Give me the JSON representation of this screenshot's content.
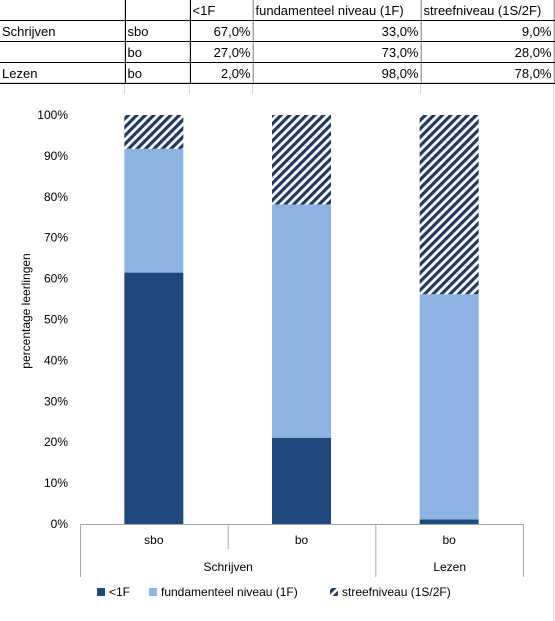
{
  "table": {
    "header": [
      "",
      "",
      "<1F",
      "fundamenteel niveau (1F)",
      "streefniveau (1S/2F)"
    ],
    "rows": [
      [
        "Schrijven",
        "sbo",
        "67,0%",
        "33,0%",
        "9,0%"
      ],
      [
        "",
        "bo",
        "27,0%",
        "73,0%",
        "28,0%"
      ],
      [
        "Lezen",
        "bo",
        "2,0%",
        "98,0%",
        "78,0%"
      ]
    ]
  },
  "chart_data": {
    "type": "bar",
    "stacked": "percent",
    "categories": [
      {
        "label": "sbo",
        "group": "Schrijven"
      },
      {
        "label": "bo",
        "group": "Schrijven"
      },
      {
        "label": "bo",
        "group": "Lezen"
      }
    ],
    "groups": [
      "Schrijven",
      "Lezen"
    ],
    "series": [
      {
        "name": "<1F",
        "values": [
          67,
          27,
          2
        ],
        "color": "#1f497d",
        "pattern": "solid"
      },
      {
        "name": "fundamenteel niveau (1F)",
        "values": [
          33,
          73,
          98
        ],
        "color": "#8db3e2",
        "pattern": "solid"
      },
      {
        "name": "streefniveau (1S/2F)",
        "values": [
          9,
          28,
          78
        ],
        "color": "#1f3864",
        "pattern": "diagonal-stripes"
      }
    ],
    "ylabel": "percentage leerlingen",
    "ylim": [
      0,
      100
    ],
    "yticks": [
      "0%",
      "10%",
      "20%",
      "30%",
      "40%",
      "50%",
      "60%",
      "70%",
      "80%",
      "90%",
      "100%"
    ],
    "legend_position": "bottom"
  }
}
